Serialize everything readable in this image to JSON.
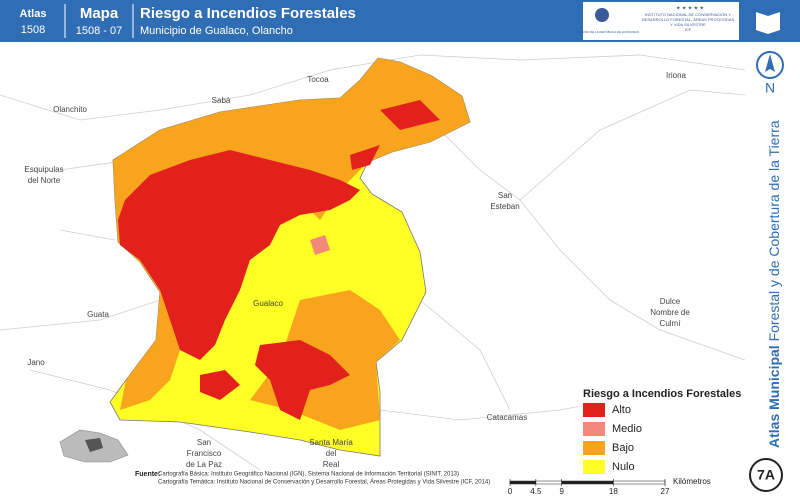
{
  "header": {
    "atlas_label": "Atlas",
    "atlas_number": "1508",
    "map_label": "Mapa",
    "map_number": "1508 - 07",
    "title": "Riesgo a Incendios Forestales",
    "subtitle": "Municipio de Gualaco, Olancho"
  },
  "logos": {
    "government": "GOBIERNO DE LA REPÚBLICA DE HONDURAS",
    "institute": "INSTITUTO NACIONAL DE CONSERVACIÓN Y DESARROLLO FORESTAL, ÁREAS PROTEGIDAS Y VIDA SILVESTRE",
    "institute_abbr": "ICF"
  },
  "sidebar": {
    "series_title_bold": "Atlas Municipal",
    "series_title": "Forestal y de Cobertura de la Tierra",
    "north": "N",
    "sheet": "7A"
  },
  "places": [
    {
      "lines": [
        "Tocoa"
      ]
    },
    {
      "lines": [
        "Iriona"
      ]
    },
    {
      "lines": [
        "Olanchito"
      ]
    },
    {
      "lines": [
        "Sabá"
      ]
    },
    {
      "lines": [
        "Esquipulas",
        "del Norte"
      ]
    },
    {
      "lines": [
        "San",
        "Esteban"
      ]
    },
    {
      "lines": [
        "Gualaco"
      ]
    },
    {
      "lines": [
        "Guata"
      ]
    },
    {
      "lines": [
        "Dulce",
        "Nombre de",
        "Culmí"
      ]
    },
    {
      "lines": [
        "Jano"
      ]
    },
    {
      "lines": [
        "Catacamas"
      ]
    },
    {
      "lines": [
        "San",
        "Francisco",
        "de La Paz"
      ]
    },
    {
      "lines": [
        "Santa María",
        "del",
        "Real"
      ]
    }
  ],
  "legend": {
    "title": "Riesgo a Incendios Forestales",
    "items": [
      {
        "label": "Alto",
        "color": "#e3211c"
      },
      {
        "label": "Medio",
        "color": "#f4887a"
      },
      {
        "label": "Bajo",
        "color": "#f8a41c"
      },
      {
        "label": "Nulo",
        "color": "#ffff26"
      }
    ]
  },
  "scale": {
    "ticks": [
      0,
      4.5,
      9,
      18,
      27
    ],
    "unit": "Kilómetros"
  },
  "sources": {
    "label": "Fuente:",
    "lines": [
      "Cartografía Básica: Instituto Geográfico Nacional (IGN), Sistema Nacional de Información Territorial (SINIT, 2013)",
      "Cartografía Temática: Instituto Nacional de Conservación y Desarrollo Forestal, Áreas Protegidas y Vida Silvestre (ICF, 2014)"
    ]
  }
}
